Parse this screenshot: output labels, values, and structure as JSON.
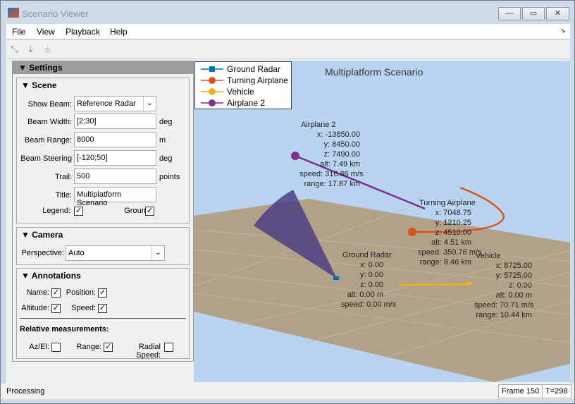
{
  "window": {
    "title": "Scenario Viewer",
    "minimize": "—",
    "maximize": "▭",
    "close": "✕"
  },
  "menu": [
    "File",
    "View",
    "Playback",
    "Help"
  ],
  "toolbar": {
    "icons": [
      "rotate-icon",
      "pan-icon",
      "light-icon"
    ]
  },
  "settings": {
    "header": "▼ Settings",
    "scene": {
      "header": "▼ Scene",
      "show_beam_label": "Show Beam:",
      "show_beam_value": "Reference Radar",
      "beam_width_label": "Beam Width:",
      "beam_width": "[2;30]",
      "beam_width_unit": "deg",
      "beam_range_label": "Beam Range:",
      "beam_range": "8000",
      "beam_range_unit": "m",
      "beam_steering_label": "Beam Steering",
      "beam_steering": "[-120;50]",
      "beam_steering_unit": "deg",
      "trail_label": "Trail:",
      "trail": "500",
      "trail_unit": "points",
      "title_label": "Title:",
      "title": "Multiplatform Scenario",
      "legend_label": "Legend:",
      "legend_checked": true,
      "ground_label": "Ground:",
      "ground_checked": true
    },
    "camera": {
      "header": "▼ Camera",
      "perspective_label": "Perspective:",
      "perspective": "Auto"
    },
    "annotations": {
      "header": "▼ Annotations",
      "name_label": "Name:",
      "name": true,
      "position_label": "Position:",
      "position": true,
      "altitude_label": "Altitude:",
      "altitude": true,
      "speed_label": "Speed:",
      "speed": true,
      "relative_header": "Relative measurements:",
      "azel_label": "Az/El:",
      "azel": false,
      "range_label": "Range:",
      "range": true,
      "radial_label": "Radial Speed:",
      "radial": false
    }
  },
  "plot": {
    "title": "Multiplatform Scenario",
    "legend": [
      {
        "name": "Ground Radar",
        "color": "#0072bd",
        "marker": "square"
      },
      {
        "name": "Turning Airplane",
        "color": "#d95319",
        "marker": "circle"
      },
      {
        "name": "Vehicle",
        "color": "#edb120",
        "marker": "circle"
      },
      {
        "name": "Airplane 2",
        "color": "#7e2f8e",
        "marker": "circle"
      }
    ],
    "annotations": {
      "airplane2": {
        "name": "Airplane 2",
        "lines": "x: -13850.00\ny: 8450.00\nz: 7490.00\nalt: 7.49 km\nspeed: 316.86 m/s\nrange: 17.87 km"
      },
      "turning": {
        "name": "Turning Airplane",
        "lines": "x: 7048.75\ny: 1210.25\nz: 4510.00\nalt: 4.51 km\nspeed: 359.76 m/s\nrange: 8.46 km"
      },
      "radar": {
        "name": "Ground Radar",
        "lines": "x: 0.00\ny: 0.00\nz: 0.00\nalt: 0.00 m\nspeed: 0.00 m/s"
      },
      "vehicle": {
        "name": "Vehicle",
        "lines": "x: 8725.00\ny: 5725.00\nz: 0.00\nalt: 0.00 m\nspeed: 70.71 m/s\nrange: 10.44 km"
      }
    },
    "colors": {
      "sky": "#b8d4f0",
      "ground": "#b1a186",
      "beam": "#4b3f85"
    }
  },
  "status": {
    "text": "Processing",
    "frame": "Frame 150",
    "time": "T=298"
  }
}
